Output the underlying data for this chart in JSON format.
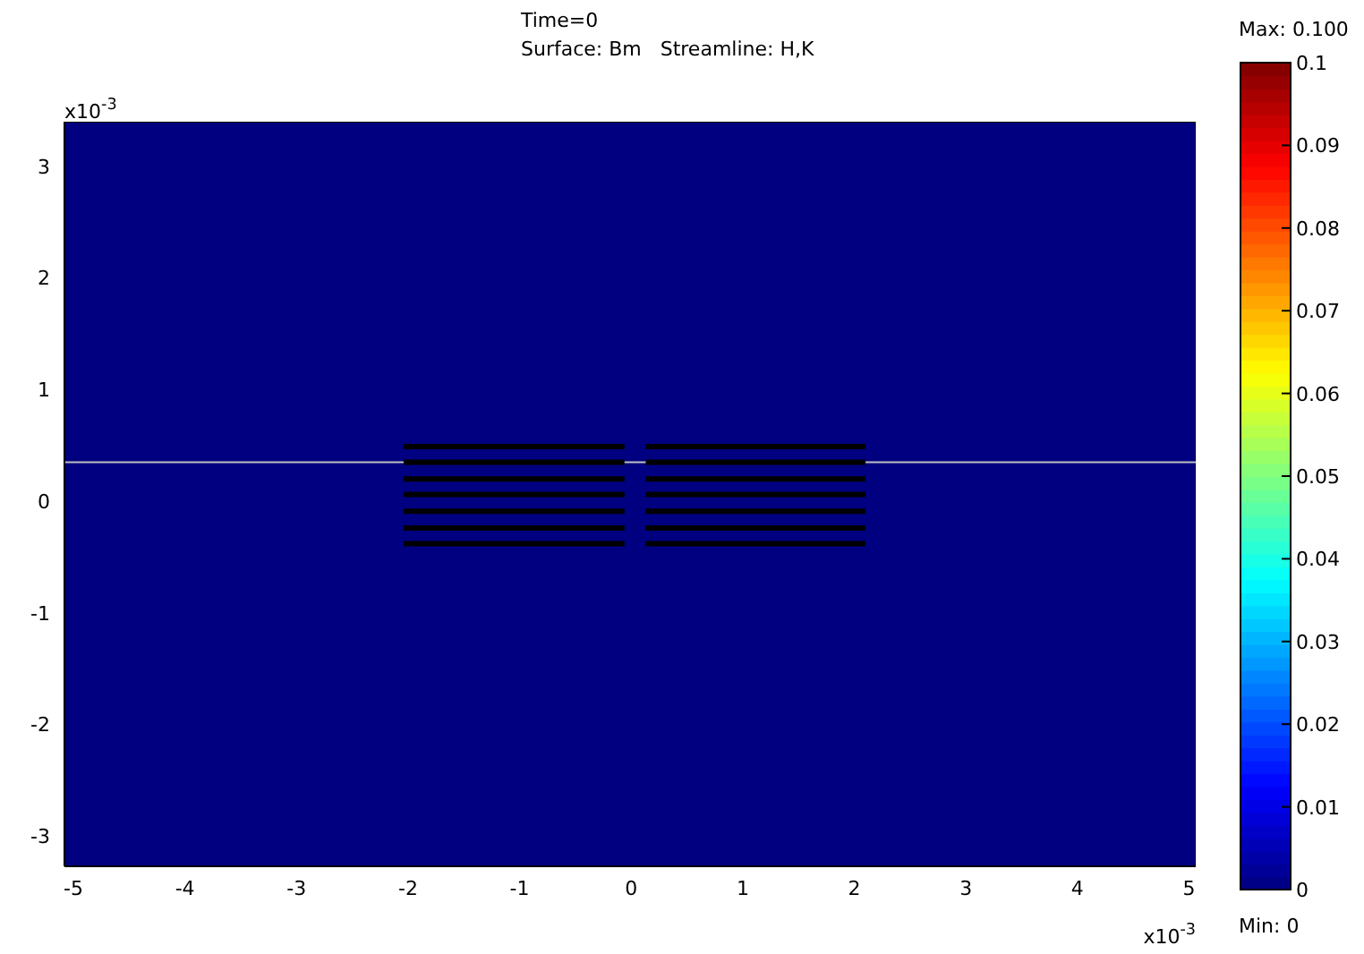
{
  "chart_data": {
    "type": "heatmap",
    "title": "Time=0",
    "subtitle": "Surface: Bm   Streamline: H,K",
    "cells": [
      [
        0
      ]
    ],
    "clim": [
      0,
      0.1
    ],
    "cticks": [
      0,
      0.01,
      0.02,
      0.03,
      0.04,
      0.05,
      0.06,
      0.07,
      0.08,
      0.09,
      0.1
    ],
    "xlim": [
      -5.08,
      5.06
    ],
    "ylim": [
      -3.27,
      3.4
    ],
    "xticks": [
      -5,
      -4,
      -3,
      -2,
      -1,
      0,
      1,
      2,
      3,
      4,
      5
    ],
    "yticks": [
      -3,
      -2,
      -1,
      0,
      1,
      2,
      3
    ],
    "ref_lines": [
      {
        "axis": "y",
        "value": 0.35,
        "color": "#c0c0c0"
      }
    ],
    "series": [
      {
        "type": "line",
        "color": "#000000",
        "x": [
          -2.04,
          -0.06
        ],
        "values": [
          0.49,
          0.49
        ]
      },
      {
        "type": "line",
        "color": "#000000",
        "x": [
          -2.04,
          -0.06
        ],
        "values": [
          0.35,
          0.35
        ]
      },
      {
        "type": "line",
        "color": "#000000",
        "x": [
          -2.04,
          -0.06
        ],
        "values": [
          0.2,
          0.2
        ]
      },
      {
        "type": "line",
        "color": "#000000",
        "x": [
          -2.04,
          -0.06
        ],
        "values": [
          0.06,
          0.06
        ]
      },
      {
        "type": "line",
        "color": "#000000",
        "x": [
          -2.04,
          -0.06
        ],
        "values": [
          -0.09,
          -0.09
        ]
      },
      {
        "type": "line",
        "color": "#000000",
        "x": [
          -2.04,
          -0.06
        ],
        "values": [
          -0.24,
          -0.24
        ]
      },
      {
        "type": "line",
        "color": "#000000",
        "x": [
          -2.04,
          -0.06
        ],
        "values": [
          -0.38,
          -0.38
        ]
      },
      {
        "type": "line",
        "color": "#000000",
        "x": [
          0.13,
          2.1
        ],
        "values": [
          0.49,
          0.49
        ]
      },
      {
        "type": "line",
        "color": "#000000",
        "x": [
          0.13,
          2.1
        ],
        "values": [
          0.35,
          0.35
        ]
      },
      {
        "type": "line",
        "color": "#000000",
        "x": [
          0.13,
          2.1
        ],
        "values": [
          0.2,
          0.2
        ]
      },
      {
        "type": "line",
        "color": "#000000",
        "x": [
          0.13,
          2.1
        ],
        "values": [
          0.06,
          0.06
        ]
      },
      {
        "type": "line",
        "color": "#000000",
        "x": [
          0.13,
          2.1
        ],
        "values": [
          -0.09,
          -0.09
        ]
      },
      {
        "type": "line",
        "color": "#000000",
        "x": [
          0.13,
          2.1
        ],
        "values": [
          -0.24,
          -0.24
        ]
      },
      {
        "type": "line",
        "color": "#000000",
        "x": [
          0.13,
          2.1
        ],
        "values": [
          -0.38,
          -0.38
        ]
      }
    ],
    "annotations": [
      "x10$^{-3}$",
      "x10$^{-3}$",
      "Max: 0.100",
      "Min: 0"
    ]
  }
}
